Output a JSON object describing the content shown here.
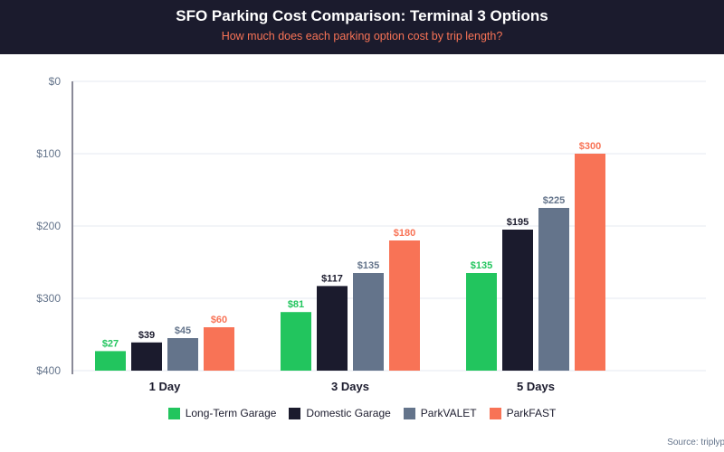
{
  "header": {
    "title": "SFO Parking Cost Comparison: Terminal 3 Options",
    "subtitle": "How much does each parking option cost by trip length?"
  },
  "source": "Source: triplypro",
  "chart_data": {
    "type": "bar",
    "title": "SFO Parking Cost Comparison: Terminal 3 Options",
    "categories": [
      "1 Day",
      "3 Days",
      "5 Days"
    ],
    "series": [
      {
        "name": "Long-Term Garage",
        "color": "#22c55e",
        "values": [
          27,
          81,
          135
        ]
      },
      {
        "name": "Domestic Garage",
        "color": "#1b1b2d",
        "values": [
          39,
          117,
          195
        ]
      },
      {
        "name": "ParkVALET",
        "color": "#64748b",
        "values": [
          45,
          135,
          225
        ]
      },
      {
        "name": "ParkFAST",
        "color": "#f87356",
        "values": [
          60,
          180,
          300
        ]
      }
    ],
    "y_ticks": [
      "$0",
      "$100",
      "$200",
      "$300",
      "$400"
    ],
    "ylim": [
      0,
      400
    ],
    "legend": "bottom",
    "grid": true
  }
}
